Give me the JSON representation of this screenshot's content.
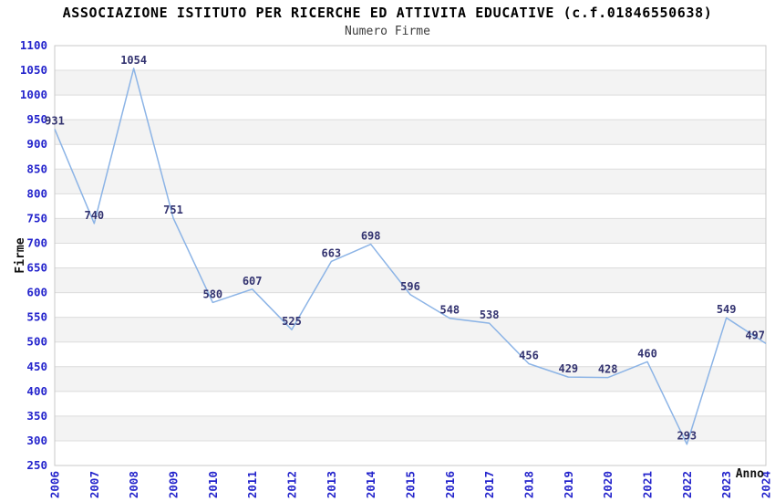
{
  "header": {
    "title": "ASSOCIAZIONE ISTITUTO PER RICERCHE ED ATTIVITA EDUCATIVE (c.f.01846550638)",
    "subtitle": "Numero Firme"
  },
  "chart_data": {
    "type": "line",
    "title": "ASSOCIAZIONE ISTITUTO PER RICERCHE ED ATTIVITA EDUCATIVE (c.f.01846550638)",
    "subtitle": "Numero Firme",
    "xlabel": "Anno",
    "ylabel": "Firme",
    "categories": [
      "2006",
      "2007",
      "2008",
      "2009",
      "2010",
      "2011",
      "2012",
      "2013",
      "2014",
      "2015",
      "2016",
      "2017",
      "2018",
      "2019",
      "2020",
      "2021",
      "2022",
      "2023",
      "2024"
    ],
    "series": [
      {
        "name": "Numero Firme",
        "values": [
          931,
          740,
          1054,
          751,
          580,
          607,
          525,
          663,
          698,
          596,
          548,
          538,
          456,
          429,
          428,
          460,
          293,
          549,
          497
        ]
      }
    ],
    "ylim": [
      250,
      1100
    ],
    "ytick_step": 50,
    "xtick_rotation": -90,
    "grid": "horizontal gridlines every 50 with alternating shaded bands",
    "legend_position": "none",
    "data_labels": true,
    "colors": {
      "line": "#8cb4e6",
      "tick_label": "#2424cc",
      "data_label": "#333370",
      "band": "#f3f3f3",
      "gridline": "#dcdcdc",
      "plot_border": "#c9c9c9",
      "title": "#000000",
      "subtitle": "#3c3c3c",
      "axis_title": "#111111",
      "background": "#ffffff"
    }
  }
}
